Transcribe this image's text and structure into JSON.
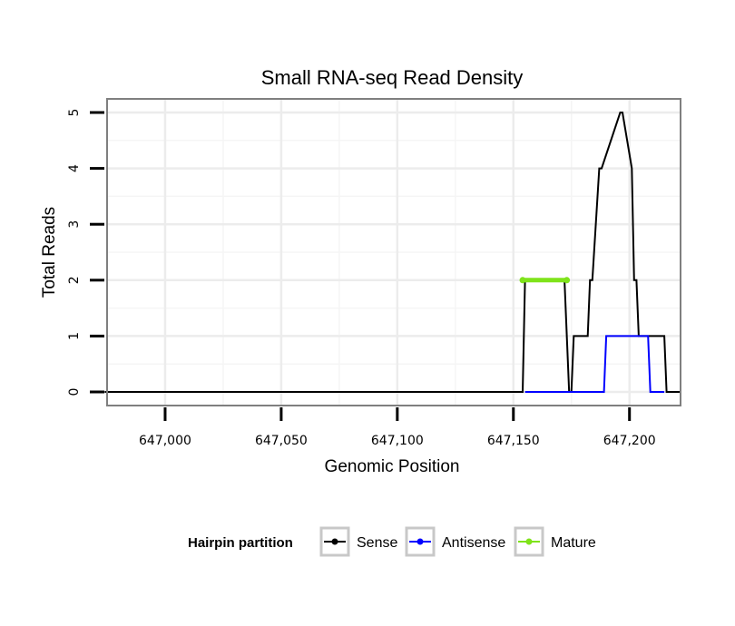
{
  "chart_data": {
    "type": "line",
    "title": "Small RNA-seq Read Density",
    "xlabel": "Genomic Position",
    "ylabel": "Total Reads",
    "xlim": [
      646975,
      647222
    ],
    "ylim": [
      0,
      5
    ],
    "grid": true,
    "x_ticks": [
      647000,
      647050,
      647100,
      647150,
      647200
    ],
    "x_tick_labels": [
      "647,000",
      "647,050",
      "647,100",
      "647,150",
      "647,200"
    ],
    "y_ticks": [
      0,
      1,
      2,
      3,
      4,
      5
    ],
    "y_tick_labels": [
      "0",
      "1",
      "2",
      "3",
      "4",
      "5"
    ],
    "legend": {
      "title": "Hairpin partition",
      "position": "bottom",
      "entries": [
        {
          "label": "Sense",
          "color": "#000000"
        },
        {
          "label": "Antisense",
          "color": "#0000ff"
        },
        {
          "label": "Mature",
          "color": "#7fe31a"
        }
      ]
    },
    "series": [
      {
        "name": "Sense",
        "color": "#000000",
        "x": [
          646974,
          647154,
          647155,
          647172,
          647174,
          647175,
          647176,
          647182,
          647183,
          647184,
          647187,
          647188,
          647196,
          647197,
          647201,
          647202,
          647203,
          647204,
          647206,
          647215,
          647216,
          647222
        ],
        "y": [
          0,
          0,
          2,
          2,
          0,
          0,
          1,
          1,
          2,
          2,
          4,
          4,
          5,
          5,
          4,
          2,
          2,
          1,
          1,
          1,
          0,
          0
        ]
      },
      {
        "name": "Antisense",
        "color": "#0000ff",
        "x": [
          647155,
          647189,
          647190,
          647208,
          647209,
          647215
        ],
        "y": [
          0,
          0,
          1,
          1,
          0,
          0
        ]
      },
      {
        "name": "Mature",
        "color": "#7fe31a",
        "x": [
          647154,
          647173
        ],
        "y": [
          2,
          2
        ]
      }
    ]
  }
}
